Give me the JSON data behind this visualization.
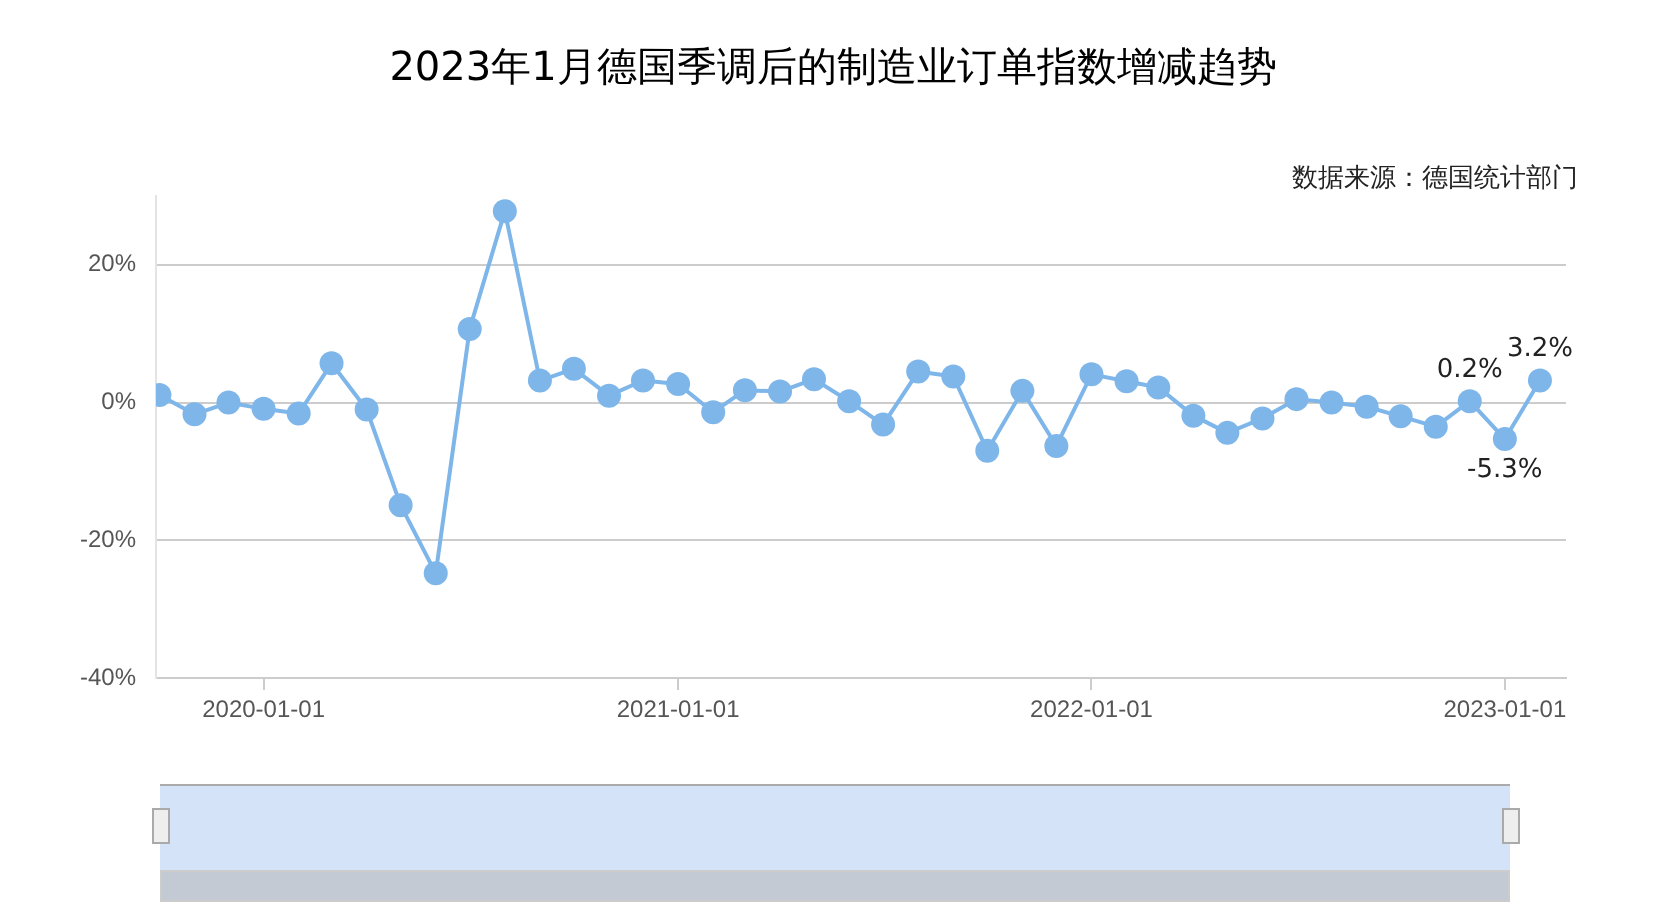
{
  "chart_data": {
    "type": "line",
    "title": "2023年1月德国季调后的制造业订单指数增减趋势",
    "annotations": [
      "数据来源：德国统计部门"
    ],
    "x": [
      "2019-10",
      "2019-11",
      "2019-12",
      "2020-01",
      "2020-02",
      "2020-03",
      "2020-04",
      "2020-05",
      "2020-06",
      "2020-07",
      "2020-08",
      "2020-09",
      "2020-10",
      "2020-11",
      "2020-12",
      "2021-01",
      "2021-02",
      "2021-03",
      "2021-04",
      "2021-05",
      "2021-06",
      "2021-07",
      "2021-08",
      "2021-09",
      "2021-10",
      "2021-11",
      "2021-12",
      "2022-01",
      "2022-02",
      "2022-03",
      "2022-04",
      "2022-05",
      "2022-06",
      "2022-07",
      "2022-08",
      "2022-09",
      "2022-10",
      "2022-11",
      "2022-12",
      "2023-01",
      "2023-02"
    ],
    "series": [
      {
        "color": "#7eb6ea",
        "values": [
          1.1,
          -1.7,
          0.0,
          -0.9,
          -1.6,
          5.7,
          -1.0,
          -14.9,
          -24.8,
          10.7,
          27.8,
          3.2,
          4.9,
          1.0,
          3.2,
          2.7,
          -1.4,
          1.8,
          1.6,
          3.4,
          0.2,
          -3.2,
          4.5,
          3.8,
          -7.0,
          1.7,
          -6.3,
          4.1,
          3.1,
          2.2,
          -1.9,
          -4.4,
          -2.3,
          0.5,
          0.0,
          -0.6,
          -2.0,
          -3.5,
          0.2,
          -5.3,
          3.2
        ],
        "value_labels": [
          null,
          null,
          null,
          null,
          null,
          null,
          null,
          null,
          null,
          null,
          null,
          null,
          null,
          null,
          null,
          null,
          null,
          null,
          null,
          null,
          null,
          null,
          null,
          null,
          null,
          null,
          null,
          null,
          null,
          null,
          null,
          null,
          null,
          null,
          null,
          null,
          null,
          null,
          "0.2%",
          "-5.3%",
          "3.2%"
        ]
      }
    ],
    "xlim": [
      "2019-09-28",
      "2023-02-24"
    ],
    "xticks": [
      "2020-01-01",
      "2021-01-01",
      "2022-01-01",
      "2023-01-01"
    ],
    "ylim": [
      -40,
      30
    ],
    "yticks": [
      {
        "value": -40,
        "label": "-40%"
      },
      {
        "value": -20,
        "label": "-20%"
      },
      {
        "value": 0,
        "label": "0%"
      },
      {
        "value": 20,
        "label": "20%"
      }
    ],
    "grid": "y",
    "legend": false,
    "marker": "circle",
    "line_style": "solid"
  }
}
